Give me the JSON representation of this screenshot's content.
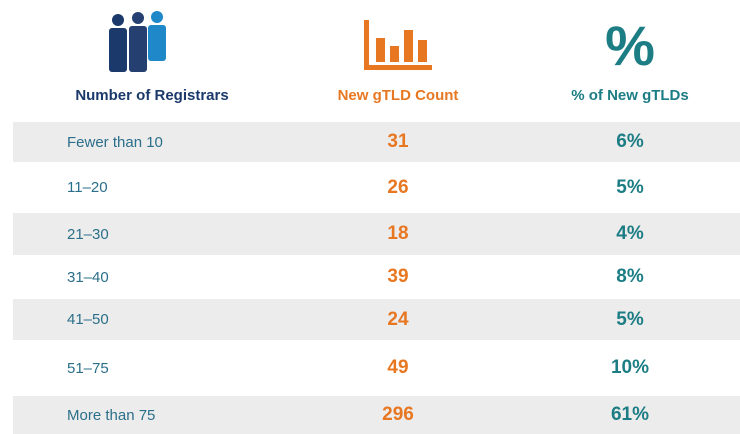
{
  "header": {
    "columns": [
      "Number of Registrars",
      "New gTLD Count",
      "% of New gTLDs"
    ],
    "percent_icon": "%"
  },
  "table": {
    "rows": [
      [
        "Fewer than 10",
        "31",
        "6%"
      ],
      [
        "11–20",
        "26",
        "5%"
      ],
      [
        "21–30",
        "18",
        "4%"
      ],
      [
        "31–40",
        "39",
        "8%"
      ],
      [
        "41–50",
        "24",
        "5%"
      ],
      [
        "51–75",
        "49",
        "10%"
      ],
      [
        "More than 75",
        "296",
        "61%"
      ]
    ]
  }
}
